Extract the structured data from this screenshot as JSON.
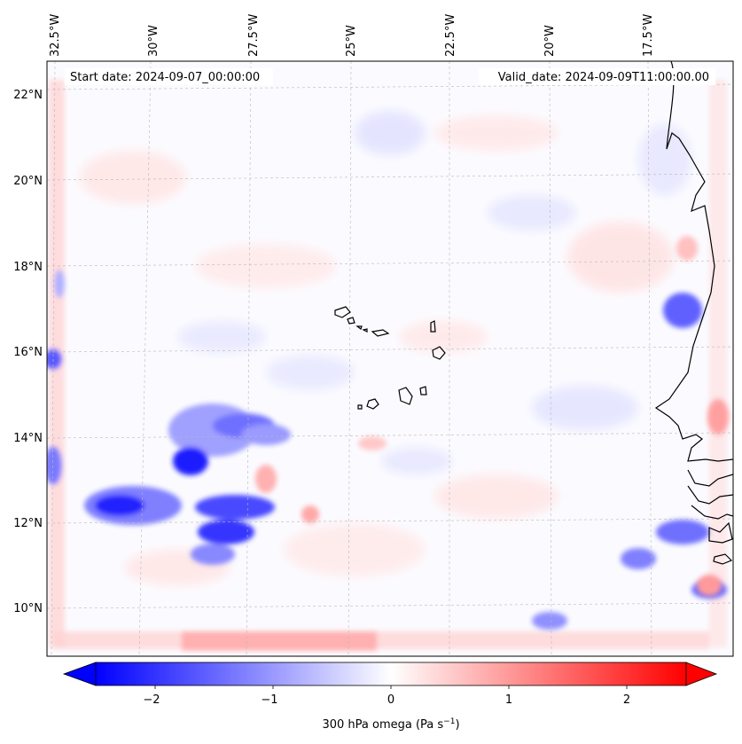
{
  "map": {
    "start_label": "Start date: 2024-09-07_00:00:00",
    "valid_label": "Valid_date: 2024-09-09T11:00:00.00",
    "lon_ticks": [
      "32.5°W",
      "30°W",
      "27.5°W",
      "25°W",
      "22.5°W",
      "20°W",
      "17.5°W"
    ],
    "lat_ticks": [
      "22°N",
      "20°N",
      "18°N",
      "16°N",
      "14°N",
      "12°N",
      "10°N"
    ],
    "gridlines": true
  },
  "colorbar": {
    "label_main": "300 hPa omega (Pa s",
    "label_exp": "−1",
    "label_close": ")",
    "ticks": [
      "−2",
      "−1",
      "0",
      "1",
      "2"
    ],
    "range": [
      -2.7,
      2.7
    ],
    "colormap": "bwr",
    "extend": "both",
    "color_low": "#0000ff",
    "color_mid": "#ffffff",
    "color_high": "#ff0000"
  }
}
